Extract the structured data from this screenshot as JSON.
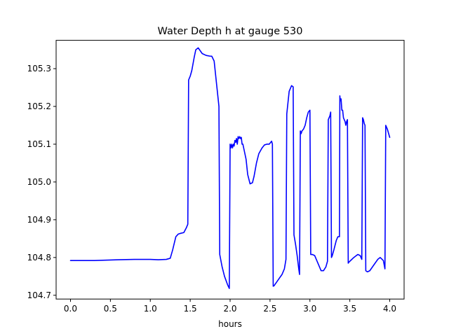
{
  "chart_data": {
    "type": "line",
    "title": "Water Depth h at gauge 530",
    "xlabel": "hours",
    "ylabel": "",
    "xlim": [
      -0.18,
      4.18
    ],
    "ylim": [
      104.69,
      105.375
    ],
    "x_ticks": [
      0.0,
      0.5,
      1.0,
      1.5,
      2.0,
      2.5,
      3.0,
      3.5,
      4.0
    ],
    "x_tick_labels": [
      "0.0",
      "0.5",
      "1.0",
      "1.5",
      "2.0",
      "2.5",
      "3.0",
      "3.5",
      "4.0"
    ],
    "y_ticks": [
      104.7,
      104.8,
      104.9,
      105.0,
      105.1,
      105.2,
      105.3
    ],
    "y_tick_labels": [
      "104.7",
      "104.8",
      "104.9",
      "105.0",
      "105.1",
      "105.2",
      "105.3"
    ],
    "grid": false,
    "color": "#0000ff",
    "x": [
      0.0,
      0.3,
      0.6,
      0.8,
      1.0,
      1.1,
      1.2,
      1.25,
      1.28,
      1.32,
      1.35,
      1.38,
      1.42,
      1.45,
      1.47,
      1.48,
      1.5,
      1.52,
      1.55,
      1.57,
      1.6,
      1.65,
      1.7,
      1.75,
      1.77,
      1.8,
      1.83,
      1.86,
      1.87,
      1.9,
      1.93,
      1.97,
      1.99,
      2.0,
      2.01,
      2.02,
      2.03,
      2.04,
      2.05,
      2.06,
      2.07,
      2.08,
      2.09,
      2.1,
      2.11,
      2.12,
      2.13,
      2.14,
      2.15,
      2.16,
      2.18,
      2.2,
      2.22,
      2.25,
      2.28,
      2.3,
      2.33,
      2.36,
      2.4,
      2.43,
      2.46,
      2.49,
      2.52,
      2.53,
      2.54,
      2.55,
      2.56,
      2.6,
      2.65,
      2.68,
      2.7,
      2.71,
      2.74,
      2.77,
      2.79,
      2.8,
      2.82,
      2.84,
      2.86,
      2.87,
      2.88,
      2.89,
      2.9,
      2.92,
      2.94,
      2.96,
      2.98,
      3.0,
      3.01,
      3.02,
      3.03,
      3.06,
      3.1,
      3.14,
      3.17,
      3.2,
      3.22,
      3.23,
      3.25,
      3.26,
      3.27,
      3.28,
      3.3,
      3.33,
      3.35,
      3.37,
      3.375,
      3.38,
      3.39,
      3.4,
      3.41,
      3.42,
      3.43,
      3.44,
      3.45,
      3.46,
      3.47,
      3.48,
      3.49,
      3.5,
      3.55,
      3.6,
      3.63,
      3.65,
      3.66,
      3.67,
      3.68,
      3.69,
      3.7,
      3.72,
      3.75,
      3.8,
      3.85,
      3.88,
      3.92,
      3.94,
      3.95,
      3.97,
      4.0
    ],
    "y": [
      104.792,
      104.792,
      104.794,
      104.795,
      104.795,
      104.794,
      104.795,
      104.798,
      104.82,
      104.855,
      104.862,
      104.864,
      104.866,
      104.878,
      104.888,
      105.27,
      105.28,
      105.295,
      105.33,
      105.35,
      105.355,
      105.34,
      105.335,
      105.333,
      105.333,
      105.32,
      105.26,
      105.2,
      104.808,
      104.775,
      104.75,
      104.727,
      104.718,
      105.1,
      105.09,
      105.1,
      105.09,
      105.1,
      105.095,
      105.11,
      105.105,
      105.115,
      105.1,
      105.12,
      105.115,
      105.12,
      105.115,
      105.118,
      105.1,
      105.1,
      105.08,
      105.06,
      105.02,
      104.995,
      104.998,
      105.015,
      105.05,
      105.075,
      105.09,
      105.098,
      105.1,
      105.1,
      105.108,
      105.1,
      104.724,
      104.725,
      104.728,
      104.74,
      104.755,
      104.77,
      104.795,
      105.18,
      105.24,
      105.255,
      105.252,
      104.86,
      104.835,
      104.805,
      104.77,
      104.755,
      105.135,
      105.128,
      105.135,
      105.14,
      105.15,
      105.17,
      105.185,
      105.19,
      104.808,
      104.808,
      104.808,
      104.805,
      104.785,
      104.765,
      104.765,
      104.775,
      104.79,
      105.165,
      105.175,
      105.185,
      104.8,
      104.805,
      104.82,
      104.845,
      104.855,
      104.855,
      105.228,
      105.215,
      105.22,
      105.19,
      105.19,
      105.17,
      105.165,
      105.16,
      105.15,
      105.16,
      105.165,
      104.785,
      104.788,
      104.79,
      104.8,
      104.808,
      104.805,
      104.795,
      105.17,
      105.165,
      105.155,
      105.15,
      104.765,
      104.762,
      104.765,
      104.78,
      104.795,
      104.8,
      104.792,
      104.77,
      105.15,
      105.14,
      105.118
    ]
  }
}
